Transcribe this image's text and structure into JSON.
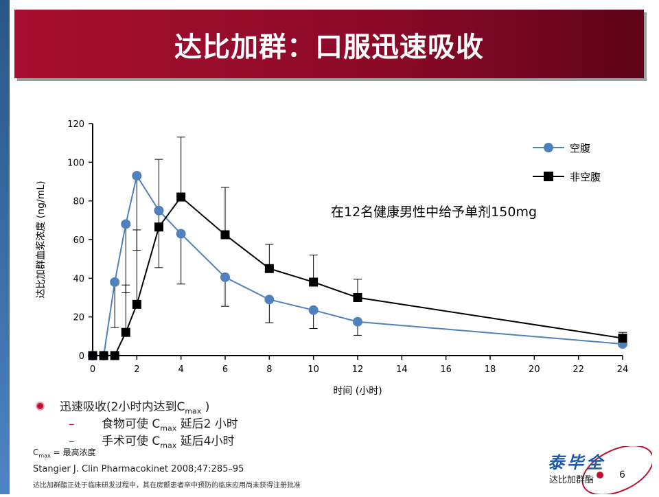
{
  "title": "达比加群：口服迅速吸收",
  "chart_data": {
    "type": "line",
    "xlabel": "时间 (小时)",
    "ylabel": "达比加群血浆浓度 (ng/mL)",
    "xlim": [
      0,
      24
    ],
    "ylim": [
      0,
      120
    ],
    "xticks": [
      0,
      2,
      4,
      6,
      8,
      10,
      12,
      14,
      16,
      18,
      20,
      22,
      24
    ],
    "yticks": [
      0,
      20,
      40,
      60,
      80,
      100,
      120
    ],
    "grid": false,
    "legend_position": "top-right",
    "annotation": "在12名健康男性中给予单剂150mg",
    "series": [
      {
        "name": "空腹",
        "color": "#4f81bd",
        "marker": "circle",
        "x": [
          0,
          0.5,
          1,
          1.5,
          2,
          3,
          4,
          6,
          8,
          10,
          12,
          24
        ],
        "y": [
          0,
          0,
          38,
          68,
          93,
          75,
          63,
          40.5,
          29,
          23.5,
          17.5,
          6
        ],
        "error_lower": [
          null,
          null,
          14.5,
          32.5,
          54.5,
          45.5,
          37,
          25.5,
          17,
          14,
          10.5,
          null
        ]
      },
      {
        "name": "非空腹",
        "color": "#000000",
        "marker": "square",
        "x": [
          0,
          0.5,
          1,
          1.5,
          2,
          3,
          4,
          6,
          8,
          10,
          12,
          24
        ],
        "y": [
          0,
          0,
          0,
          12,
          26.5,
          66.5,
          82,
          62.5,
          45,
          38,
          30,
          9
        ],
        "error_upper": [
          null,
          null,
          null,
          36.5,
          65,
          101.5,
          113,
          87,
          57.5,
          52,
          39.5,
          12
        ]
      }
    ]
  },
  "bullets": {
    "main": {
      "text": "迅速吸收(2小时内达到C",
      "sub": "max",
      "end": " )"
    },
    "items": [
      {
        "pre": "食物可使 C",
        "sub": "max",
        "post": " 延后2 小时"
      },
      {
        "pre": "手术可使 C",
        "sub": "max",
        "post": " 延后4小时"
      }
    ],
    "dash": "–"
  },
  "note": {
    "pre": "C",
    "sub": "max",
    "post": " = 最高浓度"
  },
  "reference": "Stangier J. Clin Pharmacokinet 2008;47:285–95",
  "disclaimer": "达比加群酯正处于临床研发过程中，其在房颤患者卒中预防的临床应用尚未获得注册批准",
  "logo": {
    "brand": "泰毕全",
    "generic": "达比加群酯"
  },
  "page_number": "6"
}
